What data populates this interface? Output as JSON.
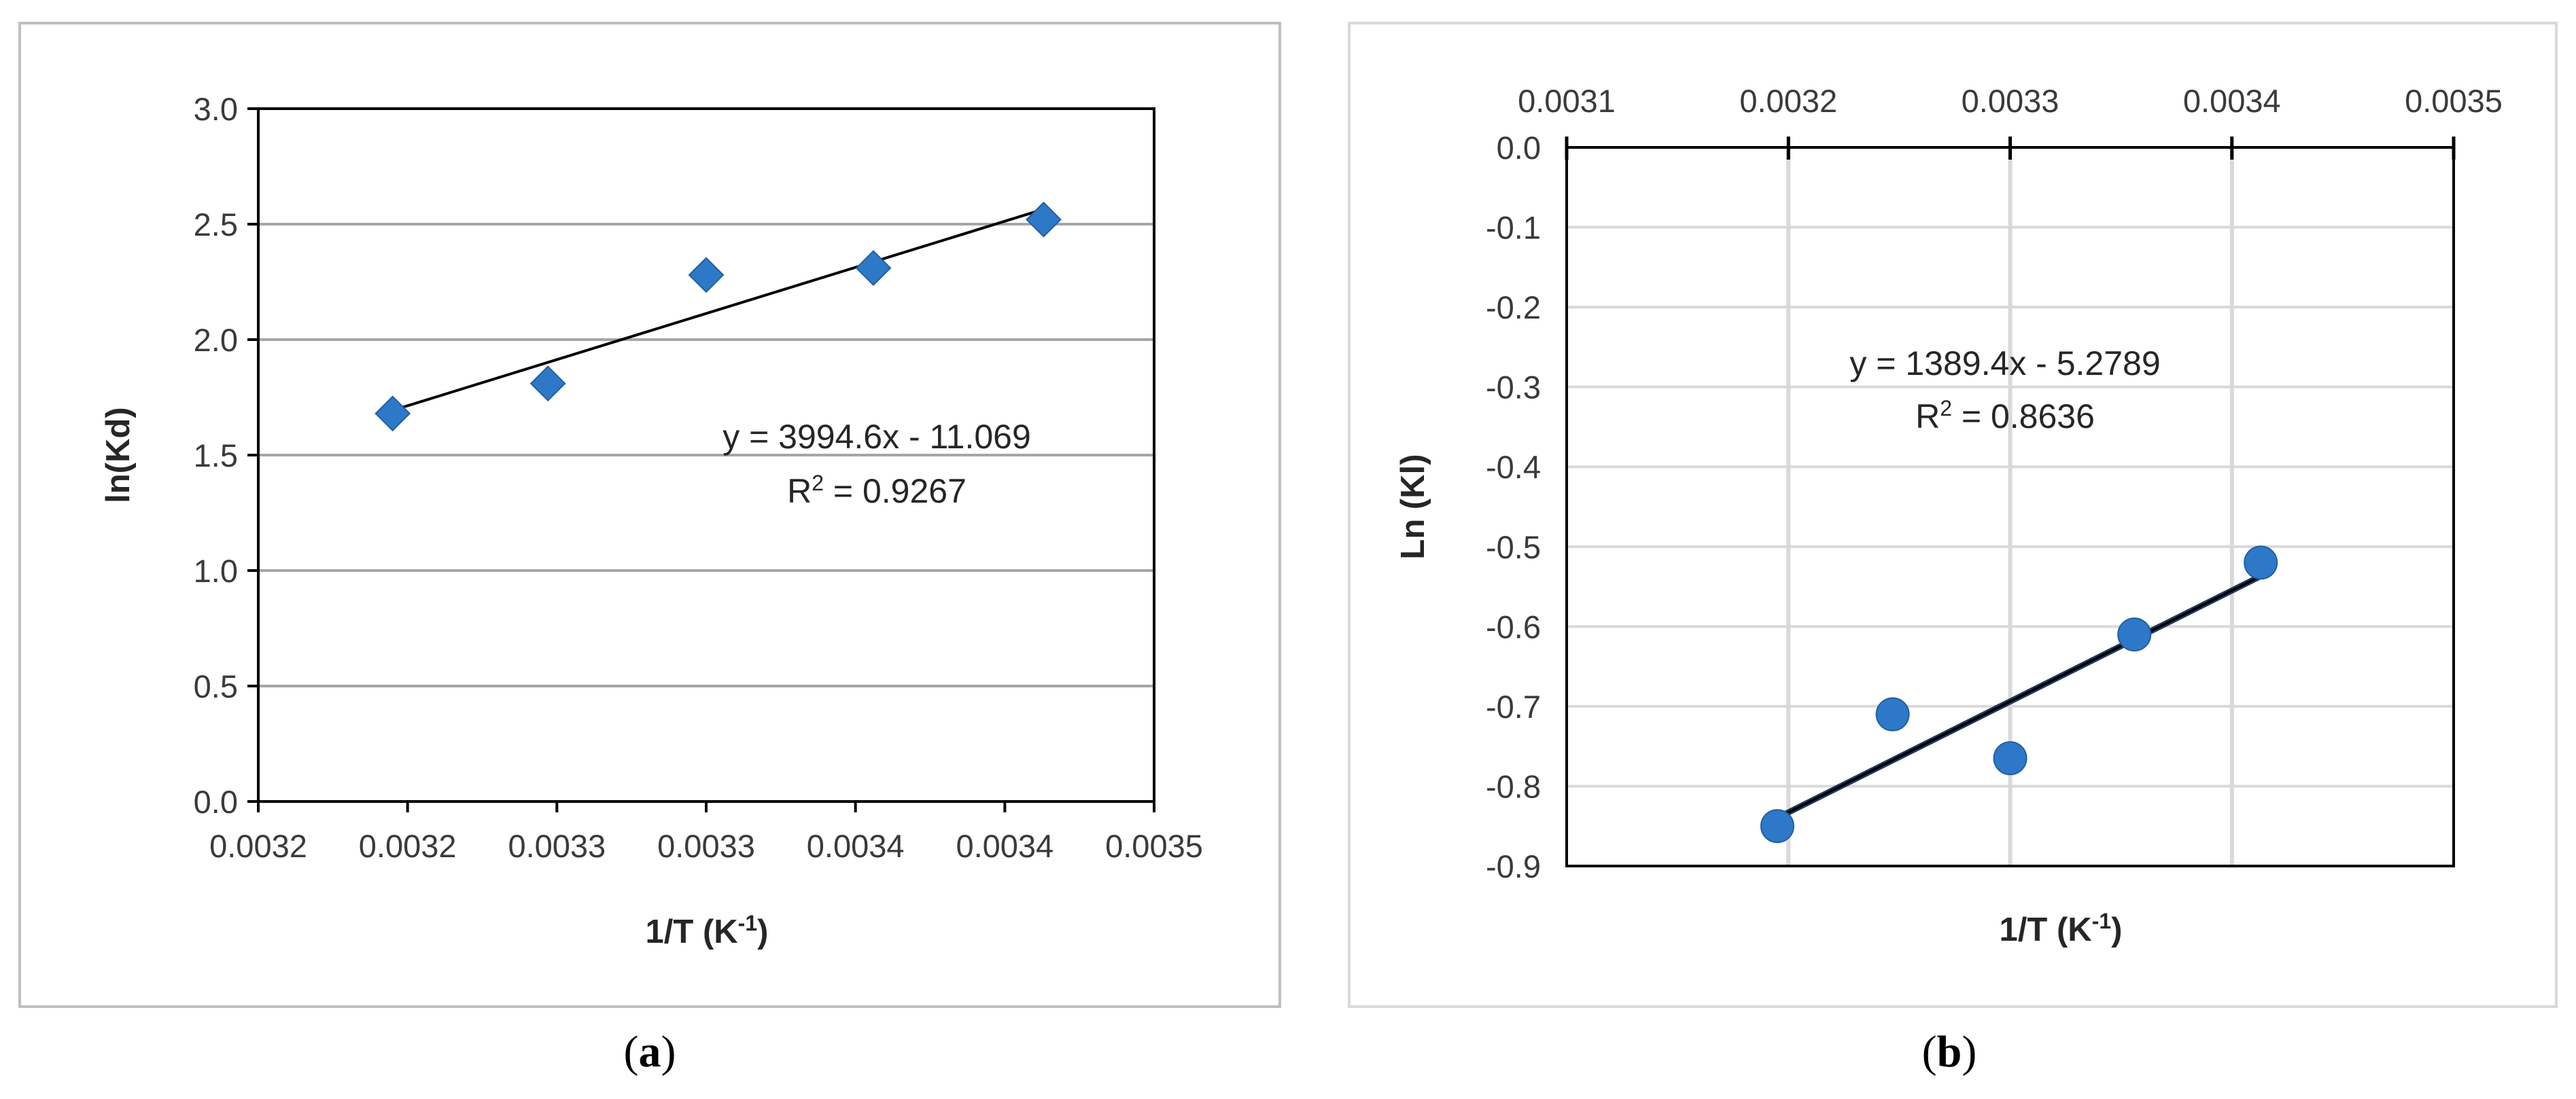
{
  "chart_data": [
    {
      "type": "scatter",
      "panel_label": "(a)",
      "xlabel": "1/T (K-1)",
      "ylabel": "ln(Kd)",
      "x_tick_labels": [
        "0.0032",
        "0.0032",
        "0.0033",
        "0.0033",
        "0.0034",
        "0.0034",
        "0.0035"
      ],
      "y_tick_labels": [
        "0.0",
        "0.5",
        "1.0",
        "1.5",
        "2.0",
        "2.5",
        "3.0"
      ],
      "xlim": [
        0.00315,
        0.00345
      ],
      "ylim": [
        0,
        3.0
      ],
      "grid": "horizontal",
      "marker": "diamond",
      "marker_color": "#2e78c8",
      "series": [
        {
          "x": [
            0.003195,
            0.003247,
            0.0033,
            0.003356,
            0.003413
          ],
          "y": [
            1.68,
            1.81,
            2.28,
            2.31,
            2.52
          ]
        }
      ],
      "trendline": {
        "slope": 3994.6,
        "intercept": -11.069,
        "x_range": [
          0.003195,
          0.003413
        ]
      },
      "equation": "y = 3994.6x - 11.069",
      "r2_prefix": "R",
      "r2_value": " = 0.9267"
    },
    {
      "type": "scatter",
      "panel_label": "(b)",
      "xlabel": "1/T (K-1)",
      "ylabel": "Ln (Kl)",
      "x_tick_labels": [
        "0.0031",
        "0.0032",
        "0.0033",
        "0.0034",
        "0.0035"
      ],
      "y_tick_labels": [
        "0.0",
        "-0.1",
        "-0.2",
        "-0.3",
        "-0.4",
        "-0.5",
        "-0.6",
        "-0.7",
        "-0.8",
        "-0.9"
      ],
      "xlim": [
        0.0031,
        0.0035
      ],
      "ylim": [
        -0.9,
        0.0
      ],
      "x_axis_position": "top",
      "grid": "both",
      "marker": "circle",
      "marker_color": "#2e78c8",
      "series": [
        {
          "x": [
            0.003195,
            0.003247,
            0.0033,
            0.003356,
            0.003413
          ],
          "y": [
            -0.85,
            -0.71,
            -0.765,
            -0.61,
            -0.52
          ]
        }
      ],
      "trendline": {
        "slope": 1389.4,
        "intercept": -5.2789,
        "x_range": [
          0.003195,
          0.003413
        ]
      },
      "equation": "y = 1389.4x - 5.2789",
      "r2_prefix": "R",
      "r2_value": " = 0.8636"
    }
  ]
}
